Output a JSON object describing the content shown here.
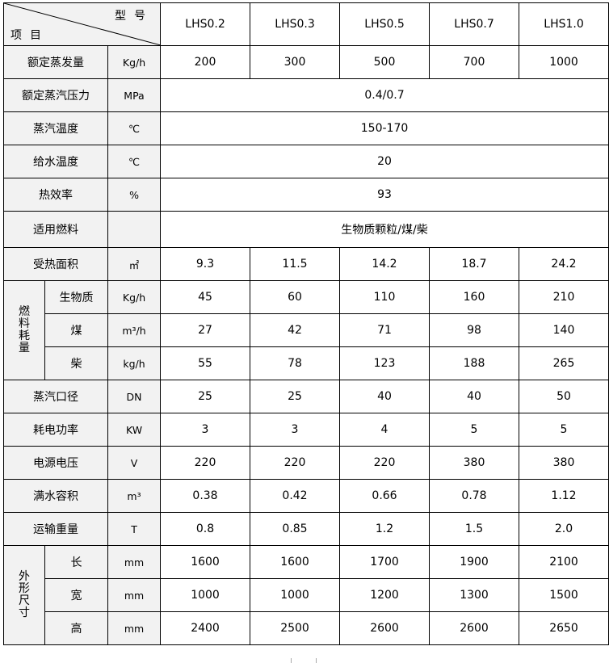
{
  "header": {
    "corner_top": "型号",
    "corner_bottom": "项目",
    "models": [
      "LHS0.2",
      "LHS0.3",
      "LHS0.5",
      "LHS0.7",
      "LHS1.0"
    ]
  },
  "rows": [
    {
      "label": "额定蒸发量",
      "unit": "Kg/h",
      "values": [
        "200",
        "300",
        "500",
        "700",
        "1000"
      ]
    },
    {
      "label": "额定蒸汽压力",
      "unit": "MPa",
      "merged": "0.4/0.7"
    },
    {
      "label": "蒸汽温度",
      "unit": "℃",
      "merged": "150-170"
    },
    {
      "label": "给水温度",
      "unit": "℃",
      "merged": "20"
    },
    {
      "label": "热效率",
      "unit": "%",
      "merged": "93"
    },
    {
      "label": "适用燃料",
      "unit": "",
      "merged": "生物质颗粒/煤/柴",
      "tall": true
    },
    {
      "label": "受热面积",
      "unit": "㎡",
      "values": [
        "9.3",
        "11.5",
        "14.2",
        "18.7",
        "24.2"
      ]
    },
    {
      "group": "燃料耗量",
      "label": "生物质",
      "unit": "Kg/h",
      "values": [
        "45",
        "60",
        "110",
        "160",
        "210"
      ]
    },
    {
      "label": "煤",
      "unit": "m³/h",
      "values": [
        "27",
        "42",
        "71",
        "98",
        "140"
      ],
      "in_group": true
    },
    {
      "label": "柴",
      "unit": "kg/h",
      "values": [
        "55",
        "78",
        "123",
        "188",
        "265"
      ],
      "in_group": true
    },
    {
      "label": "蒸汽口径",
      "unit": "DN",
      "values": [
        "25",
        "25",
        "40",
        "40",
        "50"
      ]
    },
    {
      "label": "耗电功率",
      "unit": "KW",
      "values": [
        "3",
        "3",
        "4",
        "5",
        "5"
      ]
    },
    {
      "label": "电源电压",
      "unit": "V",
      "values": [
        "220",
        "220",
        "220",
        "380",
        "380"
      ]
    },
    {
      "label": "满水容积",
      "unit": "m³",
      "values": [
        "0.38",
        "0.42",
        "0.66",
        "0.78",
        "1.12"
      ]
    },
    {
      "label": "运输重量",
      "unit": "T",
      "values": [
        "0.8",
        "0.85",
        "1.2",
        "1.5",
        "2.0"
      ]
    },
    {
      "group": "外形尺寸",
      "label": "长",
      "unit": "mm",
      "values": [
        "1600",
        "1600",
        "1700",
        "1900",
        "2100"
      ]
    },
    {
      "label": "宽",
      "unit": "mm",
      "values": [
        "1000",
        "1000",
        "1200",
        "1300",
        "1500"
      ],
      "in_group": true
    },
    {
      "label": "高",
      "unit": "mm",
      "values": [
        "2400",
        "2500",
        "2600",
        "2600",
        "2650"
      ],
      "in_group": true
    }
  ]
}
